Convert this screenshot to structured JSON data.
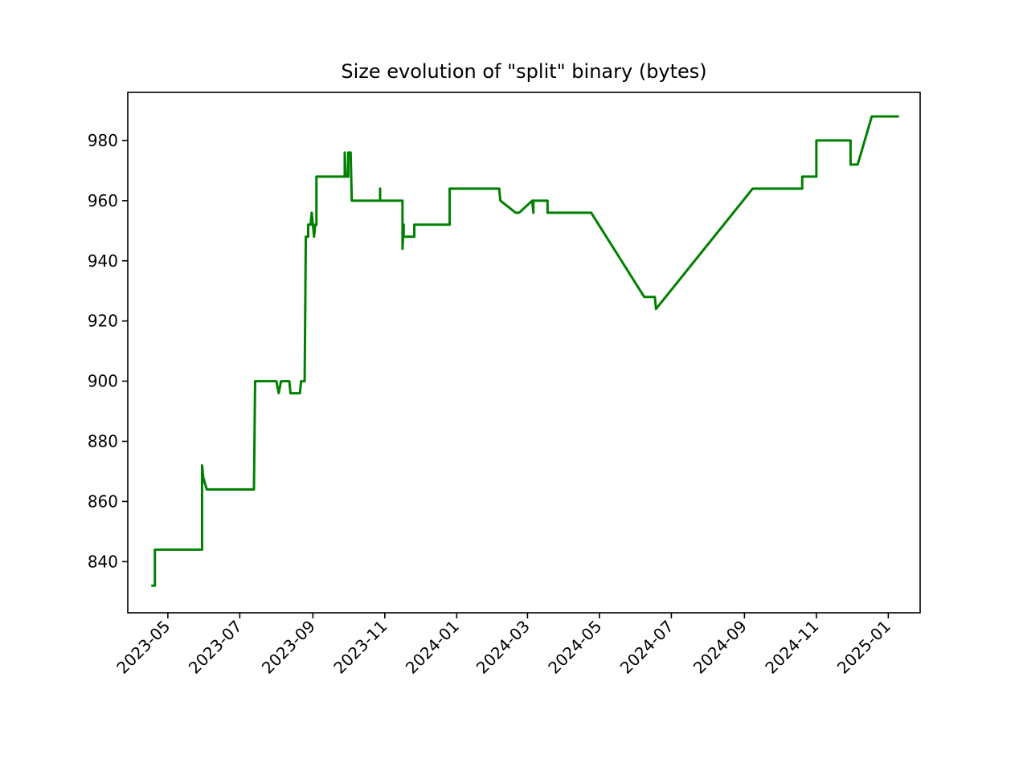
{
  "chart_data": {
    "type": "line",
    "title": "Size evolution of \"split\" binary (bytes)",
    "xlabel": "",
    "ylabel": "",
    "x_axis_type": "date",
    "xlim": [
      "2023-03-28",
      "2025-01-28"
    ],
    "ylim": [
      823,
      996
    ],
    "grid": false,
    "legend": "none",
    "x_ticks": [
      "2023-05",
      "2023-07",
      "2023-09",
      "2023-11",
      "2024-01",
      "2024-03",
      "2024-05",
      "2024-07",
      "2024-09",
      "2024-11",
      "2025-01"
    ],
    "y_ticks": [
      840,
      860,
      880,
      900,
      920,
      940,
      960,
      980
    ],
    "series": [
      {
        "color": "#008000",
        "points": [
          [
            "2023-04-18",
            832
          ],
          [
            "2023-04-20",
            832
          ],
          [
            "2023-04-20",
            844
          ],
          [
            "2023-05-30",
            844
          ],
          [
            "2023-05-30",
            872
          ],
          [
            "2023-05-31",
            868
          ],
          [
            "2023-06-03",
            864
          ],
          [
            "2023-07-13",
            864
          ],
          [
            "2023-07-14",
            900
          ],
          [
            "2023-08-01",
            900
          ],
          [
            "2023-08-03",
            896
          ],
          [
            "2023-08-05",
            900
          ],
          [
            "2023-08-12",
            900
          ],
          [
            "2023-08-13",
            896
          ],
          [
            "2023-08-21",
            896
          ],
          [
            "2023-08-22",
            900
          ],
          [
            "2023-08-25",
            900
          ],
          [
            "2023-08-26",
            948
          ],
          [
            "2023-08-28",
            948
          ],
          [
            "2023-08-28",
            952
          ],
          [
            "2023-08-30",
            952
          ],
          [
            "2023-08-31",
            956
          ],
          [
            "2023-09-01",
            952
          ],
          [
            "2023-09-02",
            948
          ],
          [
            "2023-09-03",
            952
          ],
          [
            "2023-09-04",
            952
          ],
          [
            "2023-09-04",
            968
          ],
          [
            "2023-09-28",
            968
          ],
          [
            "2023-09-28",
            976
          ],
          [
            "2023-09-29",
            968
          ],
          [
            "2023-10-01",
            968
          ],
          [
            "2023-10-01",
            976
          ],
          [
            "2023-10-03",
            976
          ],
          [
            "2023-10-04",
            960
          ],
          [
            "2023-10-28",
            960
          ],
          [
            "2023-10-28",
            964
          ],
          [
            "2023-10-28",
            960
          ],
          [
            "2023-11-16",
            960
          ],
          [
            "2023-11-16",
            944
          ],
          [
            "2023-11-17",
            952
          ],
          [
            "2023-11-17",
            948
          ],
          [
            "2023-11-26",
            948
          ],
          [
            "2023-11-26",
            952
          ],
          [
            "2023-12-26",
            952
          ],
          [
            "2023-12-26",
            964
          ],
          [
            "2024-02-06",
            964
          ],
          [
            "2024-02-07",
            960
          ],
          [
            "2024-02-20",
            956
          ],
          [
            "2024-02-23",
            956
          ],
          [
            "2024-03-05",
            960
          ],
          [
            "2024-03-06",
            956
          ],
          [
            "2024-03-06",
            960
          ],
          [
            "2024-03-18",
            960
          ],
          [
            "2024-03-18",
            956
          ],
          [
            "2024-04-24",
            956
          ],
          [
            "2024-06-08",
            928
          ],
          [
            "2024-06-17",
            928
          ],
          [
            "2024-06-18",
            924
          ],
          [
            "2024-09-08",
            964
          ],
          [
            "2024-10-20",
            964
          ],
          [
            "2024-10-20",
            968
          ],
          [
            "2024-11-01",
            968
          ],
          [
            "2024-11-01",
            980
          ],
          [
            "2024-11-30",
            980
          ],
          [
            "2024-11-30",
            972
          ],
          [
            "2024-12-06",
            972
          ],
          [
            "2024-12-18",
            988
          ],
          [
            "2025-01-09",
            988
          ]
        ]
      }
    ]
  }
}
